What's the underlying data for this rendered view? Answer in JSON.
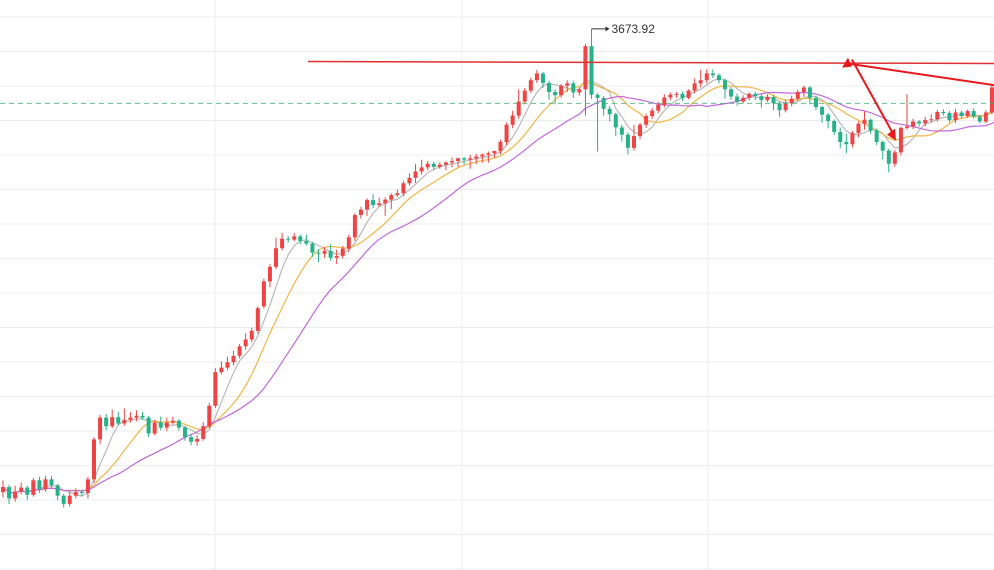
{
  "chart_data": {
    "type": "candlestick",
    "title": "",
    "xlabel": "",
    "ylabel": "",
    "ylim": [
      2500,
      3720
    ],
    "grid": true,
    "peak_annotation": {
      "text": "3673.92",
      "value": 3673.92
    },
    "resistance_level": 3600,
    "current_price_level": 3510,
    "projection_arrows": [
      {
        "from_value": 3510,
        "to_value": 3602,
        "direction": "up"
      },
      {
        "from_value": 3602,
        "to_value": 3450,
        "direction": "down"
      }
    ],
    "colors": {
      "up": "#ee4444",
      "down": "#26b18a",
      "ma_short": "#b9b9b9",
      "ma_mid": "#f1b644",
      "ma_long": "#c368de",
      "resistance": "#e03030",
      "arrow": "#e8191c",
      "price_line": "#3cb371",
      "grid": "#ececec"
    },
    "candles": [
      [
        2654,
        2665,
        2680,
        2642
      ],
      [
        2665,
        2640,
        2670,
        2628
      ],
      [
        2640,
        2655,
        2668,
        2633
      ],
      [
        2655,
        2664,
        2675,
        2649
      ],
      [
        2664,
        2648,
        2668,
        2637
      ],
      [
        2648,
        2680,
        2685,
        2644
      ],
      [
        2680,
        2660,
        2688,
        2652
      ],
      [
        2660,
        2682,
        2690,
        2655
      ],
      [
        2682,
        2669,
        2690,
        2663
      ],
      [
        2669,
        2646,
        2672,
        2636
      ],
      [
        2646,
        2628,
        2650,
        2620
      ],
      [
        2628,
        2646,
        2655,
        2622
      ],
      [
        2646,
        2654,
        2662,
        2640
      ],
      [
        2654,
        2652,
        2660,
        2645
      ],
      [
        2652,
        2682,
        2688,
        2640
      ],
      [
        2682,
        2770,
        2775,
        2674
      ],
      [
        2770,
        2818,
        2824,
        2760
      ],
      [
        2818,
        2799,
        2826,
        2790
      ],
      [
        2799,
        2819,
        2836,
        2795
      ],
      [
        2819,
        2805,
        2831,
        2801
      ],
      [
        2805,
        2813,
        2838,
        2800
      ],
      [
        2813,
        2818,
        2830,
        2807
      ],
      [
        2818,
        2822,
        2834,
        2810
      ],
      [
        2822,
        2818,
        2830,
        2813
      ],
      [
        2818,
        2783,
        2822,
        2775
      ],
      [
        2783,
        2807,
        2813,
        2779
      ],
      [
        2807,
        2796,
        2820,
        2790
      ],
      [
        2796,
        2807,
        2818,
        2788
      ],
      [
        2807,
        2811,
        2820,
        2803
      ],
      [
        2811,
        2796,
        2815,
        2789
      ],
      [
        2796,
        2775,
        2800,
        2767
      ],
      [
        2775,
        2765,
        2782,
        2757
      ],
      [
        2765,
        2771,
        2779,
        2756
      ],
      [
        2771,
        2799,
        2808,
        2767
      ],
      [
        2799,
        2844,
        2850,
        2795
      ],
      [
        2844,
        2918,
        2927,
        2839
      ],
      [
        2918,
        2928,
        2942,
        2913
      ],
      [
        2928,
        2940,
        2952,
        2922
      ],
      [
        2940,
        2954,
        2965,
        2933
      ],
      [
        2954,
        2975,
        2980,
        2948
      ],
      [
        2975,
        2990,
        3004,
        2967
      ],
      [
        2990,
        3009,
        3016,
        2984
      ],
      [
        3009,
        3059,
        3063,
        3003
      ],
      [
        3063,
        3118,
        3124,
        3058
      ],
      [
        3118,
        3150,
        3156,
        3105
      ],
      [
        3150,
        3191,
        3214,
        3145
      ],
      [
        3191,
        3212,
        3225,
        3186
      ],
      [
        3212,
        3210,
        3218,
        3203
      ],
      [
        3210,
        3217,
        3225,
        3206
      ],
      [
        3217,
        3207,
        3221,
        3200
      ],
      [
        3207,
        3201,
        3221,
        3197
      ],
      [
        3201,
        3181,
        3205,
        3172
      ],
      [
        3181,
        3179,
        3189,
        3160
      ],
      [
        3179,
        3185,
        3194,
        3170
      ],
      [
        3185,
        3170,
        3200,
        3163
      ],
      [
        3170,
        3174,
        3188,
        3156
      ],
      [
        3174,
        3190,
        3196,
        3168
      ],
      [
        3190,
        3215,
        3221,
        3182
      ],
      [
        3215,
        3264,
        3268,
        3207
      ],
      [
        3264,
        3276,
        3282,
        3256
      ],
      [
        3276,
        3297,
        3301,
        3262
      ],
      [
        3297,
        3286,
        3310,
        3279
      ],
      [
        3286,
        3290,
        3302,
        3282
      ],
      [
        3290,
        3298,
        3303,
        3262
      ],
      [
        3298,
        3308,
        3312,
        3277
      ],
      [
        3308,
        3312,
        3320,
        3304
      ],
      [
        3312,
        3334,
        3340,
        3306
      ],
      [
        3334,
        3346,
        3356,
        3329
      ],
      [
        3346,
        3360,
        3376,
        3335
      ],
      [
        3360,
        3369,
        3386,
        3353
      ],
      [
        3369,
        3377,
        3383,
        3363
      ],
      [
        3377,
        3370,
        3382,
        3364
      ],
      [
        3370,
        3375,
        3380,
        3366
      ],
      [
        3375,
        3380,
        3382,
        3363
      ],
      [
        3380,
        3383,
        3391,
        3369
      ],
      [
        3383,
        3389,
        3390,
        3370
      ],
      [
        3389,
        3386,
        3392,
        3375
      ],
      [
        3386,
        3389,
        3397,
        3366
      ],
      [
        3389,
        3393,
        3399,
        3376
      ],
      [
        3393,
        3397,
        3400,
        3379
      ],
      [
        3397,
        3400,
        3404,
        3379
      ],
      [
        3400,
        3405,
        3406,
        3390
      ],
      [
        3405,
        3425,
        3430,
        3398
      ],
      [
        3425,
        3463,
        3468,
        3418
      ],
      [
        3463,
        3483,
        3494,
        3455
      ],
      [
        3483,
        3514,
        3541,
        3476
      ],
      [
        3514,
        3538,
        3544,
        3508
      ],
      [
        3538,
        3561,
        3567,
        3533
      ],
      [
        3561,
        3576,
        3584,
        3555
      ],
      [
        3576,
        3555,
        3579,
        3544
      ],
      [
        3555,
        3535,
        3560,
        3518
      ],
      [
        3535,
        3528,
        3541,
        3508
      ],
      [
        3528,
        3549,
        3553,
        3522
      ],
      [
        3549,
        3554,
        3561,
        3535
      ],
      [
        3554,
        3534,
        3560,
        3522
      ],
      [
        3534,
        3541,
        3545,
        3527
      ],
      [
        3541,
        3636,
        3641,
        3483
      ],
      [
        3636,
        3529,
        3673.92,
        3520
      ],
      [
        3529,
        3522,
        3532,
        3404
      ],
      [
        3522,
        3498,
        3526,
        3483
      ],
      [
        3498,
        3486,
        3504,
        3470
      ],
      [
        3486,
        3457,
        3489,
        3438
      ],
      [
        3457,
        3441,
        3463,
        3426
      ],
      [
        3441,
        3412,
        3446,
        3398
      ],
      [
        3412,
        3438,
        3462,
        3406
      ],
      [
        3438,
        3463,
        3467,
        3431
      ],
      [
        3463,
        3482,
        3487,
        3456
      ],
      [
        3482,
        3494,
        3500,
        3476
      ],
      [
        3494,
        3507,
        3513,
        3488
      ],
      [
        3507,
        3523,
        3530,
        3501
      ],
      [
        3523,
        3529,
        3534,
        3517
      ],
      [
        3529,
        3531,
        3535,
        3522
      ],
      [
        3531,
        3522,
        3536,
        3515
      ],
      [
        3522,
        3538,
        3541,
        3519
      ],
      [
        3538,
        3554,
        3565,
        3532
      ],
      [
        3554,
        3561,
        3584,
        3545
      ],
      [
        3561,
        3576,
        3585,
        3554
      ],
      [
        3576,
        3572,
        3585,
        3566
      ],
      [
        3572,
        3561,
        3576,
        3554
      ],
      [
        3561,
        3541,
        3564,
        3520
      ],
      [
        3541,
        3525,
        3546,
        3518
      ],
      [
        3525,
        3514,
        3532,
        3505
      ],
      [
        3514,
        3522,
        3528,
        3510
      ],
      [
        3522,
        3531,
        3534,
        3517
      ],
      [
        3531,
        3526,
        3536,
        3517
      ],
      [
        3526,
        3517,
        3531,
        3501
      ],
      [
        3517,
        3524,
        3530,
        3513
      ],
      [
        3524,
        3510,
        3529,
        3495
      ],
      [
        3510,
        3495,
        3514,
        3480
      ],
      [
        3495,
        3510,
        3518,
        3490
      ],
      [
        3510,
        3520,
        3527,
        3503
      ],
      [
        3520,
        3535,
        3540,
        3515
      ],
      [
        3535,
        3545,
        3549,
        3524
      ],
      [
        3545,
        3522,
        3548,
        3508
      ],
      [
        3522,
        3502,
        3526,
        3495
      ],
      [
        3502,
        3485,
        3505,
        3467
      ],
      [
        3485,
        3471,
        3489,
        3455
      ],
      [
        3471,
        3447,
        3475,
        3440
      ],
      [
        3447,
        3425,
        3457,
        3411
      ],
      [
        3425,
        3420,
        3444,
        3400
      ],
      [
        3420,
        3445,
        3449,
        3413
      ],
      [
        3445,
        3465,
        3470,
        3435
      ],
      [
        3465,
        3474,
        3492,
        3452
      ],
      [
        3474,
        3450,
        3476,
        3443
      ],
      [
        3450,
        3425,
        3454,
        3418
      ],
      [
        3425,
        3406,
        3428,
        3387
      ],
      [
        3406,
        3377,
        3410,
        3358
      ],
      [
        3377,
        3402,
        3407,
        3370
      ],
      [
        3402,
        3456,
        3459,
        3395
      ],
      [
        3456,
        3459,
        3530,
        3452
      ],
      [
        3459,
        3470,
        3476,
        3453
      ],
      [
        3470,
        3466,
        3473,
        3459
      ],
      [
        3466,
        3473,
        3480,
        3460
      ],
      [
        3473,
        3475,
        3486,
        3468
      ],
      [
        3475,
        3491,
        3496,
        3470
      ],
      [
        3491,
        3489,
        3497,
        3483
      ],
      [
        3489,
        3473,
        3493,
        3468
      ],
      [
        3473,
        3490,
        3498,
        3467
      ],
      [
        3490,
        3482,
        3494,
        3478
      ],
      [
        3482,
        3493,
        3496,
        3478
      ],
      [
        3493,
        3481,
        3499,
        3476
      ],
      [
        3481,
        3470,
        3484,
        3466
      ],
      [
        3470,
        3490,
        3495,
        3466
      ],
      [
        3490,
        3545,
        3550,
        3486
      ],
      [
        3545,
        3564,
        3568,
        3541
      ],
      [
        3564,
        3577,
        3580,
        3560
      ],
      [
        3577,
        3583,
        3587,
        3569
      ],
      [
        3583,
        3570,
        3587,
        3559
      ],
      [
        3570,
        3562,
        3574,
        3552
      ],
      [
        3562,
        3548,
        3567,
        3542
      ],
      [
        3548,
        3540,
        3553,
        3532
      ],
      [
        3540,
        3528,
        3545,
        3503
      ],
      [
        3528,
        3552,
        3558,
        3522
      ],
      [
        3552,
        3561,
        3568,
        3540
      ],
      [
        3561,
        3544,
        3566,
        3536
      ],
      [
        3544,
        3552,
        3558,
        3537
      ],
      [
        3552,
        3563,
        3570,
        3547
      ],
      [
        3563,
        3548,
        3568,
        3543
      ],
      [
        3548,
        3542,
        3552,
        3535
      ],
      [
        3542,
        3557,
        3562,
        3514
      ],
      [
        3557,
        3549,
        3567,
        3543
      ],
      [
        3549,
        3542,
        3558,
        3534
      ],
      [
        3542,
        3549,
        3555,
        3536
      ],
      [
        3549,
        3533,
        3556,
        3531
      ],
      [
        3533,
        3521,
        3540,
        3514
      ],
      [
        3521,
        3510,
        3526,
        3505
      ]
    ]
  }
}
